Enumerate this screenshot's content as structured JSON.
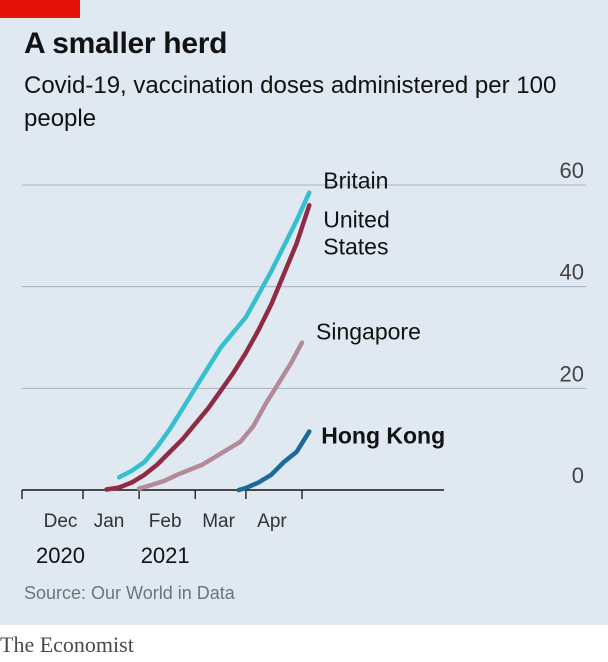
{
  "header": {
    "title": "A smaller herd",
    "subtitle": "Covid-19, vaccination doses administered per 100 people"
  },
  "source": "Source: Our World in Data",
  "brand": "The Economist",
  "colors": {
    "background": "#e0e9f1",
    "accent_red": "#e3120b",
    "britain": "#36bfd0",
    "united_states": "#8f2c44",
    "singapore": "#b48a99",
    "hong_kong": "#1b6a9a"
  },
  "chart_data": {
    "type": "line",
    "title": "A smaller herd",
    "subtitle": "Covid-19, vaccination doses administered per 100 people",
    "xlabel": "",
    "ylabel": "",
    "ylim": [
      0,
      60
    ],
    "y_ticks": [
      "0",
      "20",
      "40",
      "60"
    ],
    "y_axis_side": "right",
    "grid": "horizontal",
    "x_ticks": [
      {
        "date": "2020-12-01",
        "label": "Dec",
        "year": "2020"
      },
      {
        "date": "2021-01-01",
        "label": "Jan",
        "year": ""
      },
      {
        "date": "2021-02-01",
        "label": "Feb",
        "year": "2021"
      },
      {
        "date": "2021-03-01",
        "label": "Mar",
        "year": ""
      },
      {
        "date": "2021-04-01",
        "label": "Apr",
        "year": ""
      }
    ],
    "series": [
      {
        "name": "Britain",
        "color": "#36bfd0",
        "points": [
          [
            "2020-12-21",
            2.5
          ],
          [
            "2020-12-28",
            3.8
          ],
          [
            "2021-01-04",
            5.5
          ],
          [
            "2021-01-11",
            8.5
          ],
          [
            "2021-01-18",
            12
          ],
          [
            "2021-01-25",
            16
          ],
          [
            "2021-02-01",
            20
          ],
          [
            "2021-02-08",
            24
          ],
          [
            "2021-02-15",
            28
          ],
          [
            "2021-02-22",
            31
          ],
          [
            "2021-03-01",
            34
          ],
          [
            "2021-03-08",
            38.5
          ],
          [
            "2021-03-15",
            43
          ],
          [
            "2021-03-22",
            48
          ],
          [
            "2021-03-29",
            53
          ],
          [
            "2021-04-05",
            58.5
          ]
        ]
      },
      {
        "name": "United States",
        "color": "#8f2c44",
        "points": [
          [
            "2020-12-14",
            0.1
          ],
          [
            "2020-12-21",
            0.5
          ],
          [
            "2020-12-28",
            1.5
          ],
          [
            "2021-01-04",
            3
          ],
          [
            "2021-01-11",
            5
          ],
          [
            "2021-01-18",
            7.5
          ],
          [
            "2021-01-25",
            10
          ],
          [
            "2021-02-01",
            13
          ],
          [
            "2021-02-08",
            16
          ],
          [
            "2021-02-15",
            19.5
          ],
          [
            "2021-02-22",
            23
          ],
          [
            "2021-03-01",
            27
          ],
          [
            "2021-03-08",
            31.5
          ],
          [
            "2021-03-15",
            36.5
          ],
          [
            "2021-03-22",
            42.5
          ],
          [
            "2021-03-29",
            48.5
          ],
          [
            "2021-04-05",
            56
          ]
        ]
      },
      {
        "name": "Singapore",
        "color": "#b48a99",
        "points": [
          [
            "2021-01-01",
            0.3
          ],
          [
            "2021-01-08",
            1
          ],
          [
            "2021-01-15",
            1.8
          ],
          [
            "2021-01-22",
            3
          ],
          [
            "2021-01-29",
            4
          ],
          [
            "2021-02-05",
            5
          ],
          [
            "2021-02-12",
            6.5
          ],
          [
            "2021-02-19",
            8
          ],
          [
            "2021-02-26",
            9.5
          ],
          [
            "2021-03-05",
            12.5
          ],
          [
            "2021-03-12",
            17
          ],
          [
            "2021-03-19",
            21
          ],
          [
            "2021-03-26",
            25
          ],
          [
            "2021-04-01",
            29
          ]
        ]
      },
      {
        "name": "Hong Kong",
        "color": "#1b6a9a",
        "points": [
          [
            "2021-02-25",
            0
          ],
          [
            "2021-03-01",
            0.4
          ],
          [
            "2021-03-08",
            1.5
          ],
          [
            "2021-03-15",
            3
          ],
          [
            "2021-03-22",
            5.5
          ],
          [
            "2021-03-29",
            7.5
          ],
          [
            "2021-04-05",
            11.5
          ]
        ]
      }
    ],
    "labels": [
      {
        "series": "Britain",
        "lines": [
          "Britain"
        ],
        "bold": false
      },
      {
        "series": "United States",
        "lines": [
          "United",
          "States"
        ],
        "bold": false
      },
      {
        "series": "Singapore",
        "lines": [
          "Singapore"
        ],
        "bold": false
      },
      {
        "series": "Hong Kong",
        "lines": [
          "Hong Kong"
        ],
        "bold": true
      }
    ]
  }
}
